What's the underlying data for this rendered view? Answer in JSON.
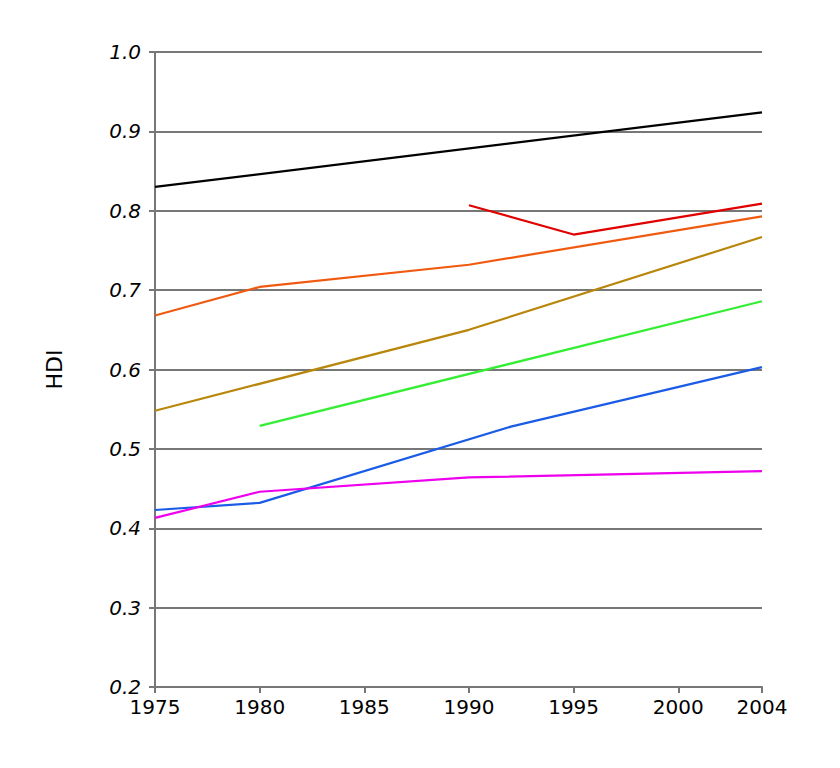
{
  "chart_data": {
    "type": "line",
    "ylabel": "HDI",
    "xlim": [
      1975,
      2004
    ],
    "xticks": [
      1975,
      1980,
      1985,
      1990,
      1995,
      2000,
      2004
    ],
    "ylim": [
      0.2,
      1
    ],
    "yticks": [
      0.2,
      0.3,
      0.4,
      0.5,
      0.6,
      0.7,
      0.8,
      0.9,
      {
        "value": 1,
        "label": "1.0"
      }
    ],
    "grid": "y",
    "series": [
      {
        "color": "#000000",
        "x": [
          1975,
          2004
        ],
        "values": [
          0.83,
          0.924
        ]
      },
      {
        "color": "#e00000",
        "x": [
          1990,
          1995,
          2004
        ],
        "values": [
          0.807,
          0.77,
          0.809
        ]
      },
      {
        "color": "#f05a10",
        "x": [
          1975,
          1980,
          1990,
          2004
        ],
        "values": [
          0.668,
          0.704,
          0.732,
          0.793
        ]
      },
      {
        "color": "#b8860b",
        "x": [
          1975,
          1990,
          2004
        ],
        "values": [
          0.548,
          0.65,
          0.767
        ]
      },
      {
        "color": "#33ee33",
        "x": [
          1980,
          2004
        ],
        "values": [
          0.529,
          0.686
        ]
      },
      {
        "color": "#1a5ce6",
        "x": [
          1975,
          1980,
          1992,
          2004
        ],
        "values": [
          0.423,
          0.432,
          0.528,
          0.603
        ]
      },
      {
        "color": "#ee00ee",
        "x": [
          1975,
          1980,
          1990,
          2004
        ],
        "values": [
          0.413,
          0.446,
          0.464,
          0.472
        ]
      }
    ]
  }
}
